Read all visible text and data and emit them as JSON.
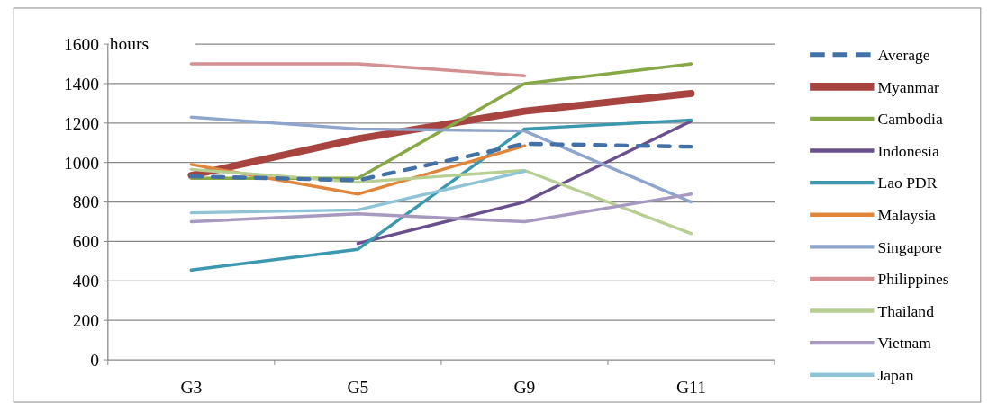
{
  "chart_data": {
    "type": "line",
    "ylabel": "hours",
    "categories": [
      "G3",
      "G5",
      "G9",
      "G11"
    ],
    "ylim": [
      0,
      1600
    ],
    "yticks": [
      0,
      200,
      400,
      600,
      800,
      1000,
      1200,
      1400,
      1600
    ],
    "grid": "y",
    "legend": "right",
    "series": [
      {
        "name": "Average",
        "color": "#4470a8",
        "line_style": "dashed",
        "values": [
          930,
          910,
          1095,
          1080
        ]
      },
      {
        "name": "Myanmar",
        "color": "#a84440",
        "values": [
          935,
          1120,
          1260,
          1350
        ]
      },
      {
        "name": "Cambodia",
        "color": "#86a846",
        "values": [
          920,
          920,
          1400,
          1500
        ]
      },
      {
        "name": "Indonesia",
        "color": "#6a4f8e",
        "values": [
          null,
          590,
          800,
          1210
        ]
      },
      {
        "name": "Lao PDR",
        "color": "#3c98ae",
        "values": [
          455,
          560,
          1170,
          1215
        ]
      },
      {
        "name": "Malaysia",
        "color": "#e0853a",
        "values": [
          990,
          840,
          1085,
          null
        ]
      },
      {
        "name": "Singapore",
        "color": "#8ea6ce",
        "values": [
          1230,
          1170,
          1160,
          800
        ]
      },
      {
        "name": "Philippines",
        "color": "#d49090",
        "values": [
          1500,
          1500,
          1440,
          null
        ]
      },
      {
        "name": "Thailand",
        "color": "#b8cf94",
        "values": [
          965,
          900,
          960,
          640
        ]
      },
      {
        "name": "Vietnam",
        "color": "#a899c0",
        "values": [
          700,
          740,
          700,
          840
        ]
      },
      {
        "name": "Japan",
        "color": "#8fc3d6",
        "values": [
          745,
          760,
          955,
          null
        ]
      }
    ]
  }
}
